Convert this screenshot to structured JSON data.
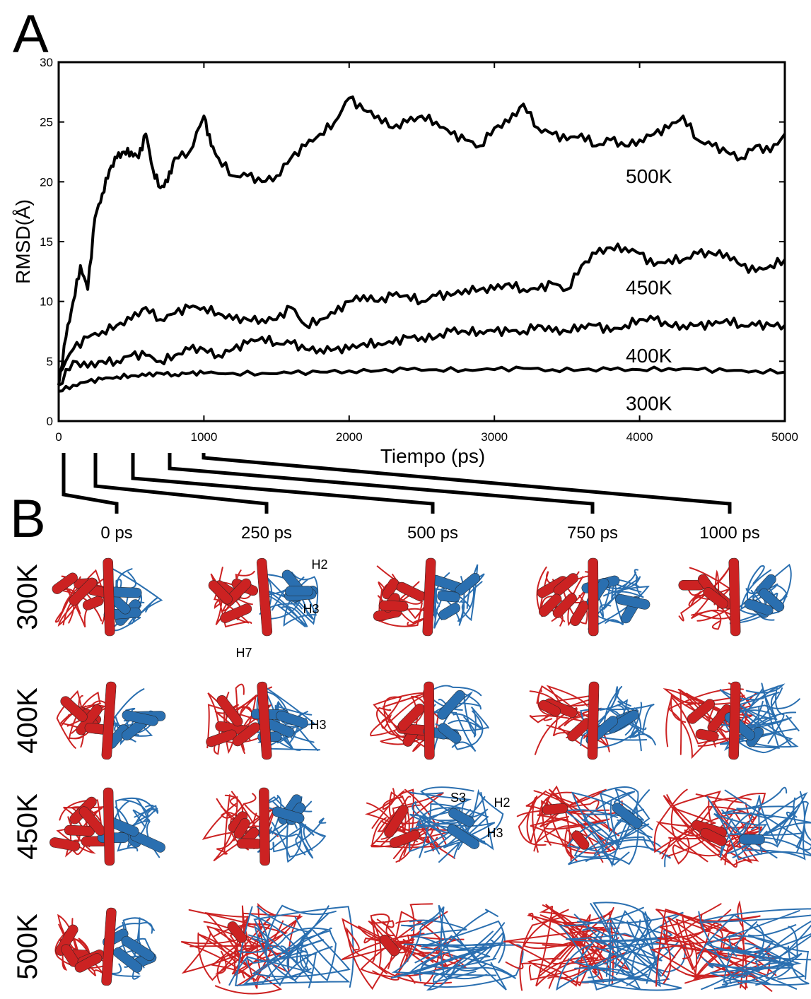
{
  "panel_a_letter": "A",
  "panel_b_letter": "B",
  "chart_data": {
    "type": "line",
    "xlabel": "Tiempo (ps)",
    "ylabel": "RMSD(Å)",
    "xlim": [
      0,
      5000
    ],
    "ylim": [
      0,
      30
    ],
    "xticks": [
      0,
      1000,
      2000,
      3000,
      4000,
      5000
    ],
    "yticks": [
      0,
      5,
      10,
      15,
      20,
      25,
      30
    ],
    "grid": false,
    "legend": "inline labels at right",
    "series": [
      {
        "name": "500K",
        "x": [
          0,
          50,
          100,
          150,
          200,
          250,
          300,
          350,
          400,
          450,
          500,
          550,
          600,
          650,
          700,
          750,
          800,
          900,
          1000,
          1050,
          1100,
          1200,
          1300,
          1400,
          1500,
          1600,
          1700,
          1800,
          1900,
          2000,
          2100,
          2200,
          2300,
          2400,
          2500,
          2600,
          2700,
          2800,
          2900,
          3000,
          3100,
          3200,
          3300,
          3400,
          3500,
          3600,
          3700,
          3800,
          3900,
          4000,
          4100,
          4200,
          4300,
          4400,
          4500,
          4600,
          4700,
          4800,
          4900,
          5000
        ],
        "y": [
          3,
          7,
          10,
          13,
          11,
          17,
          19,
          21,
          22,
          22.5,
          22.5,
          22,
          24,
          21,
          19.5,
          20,
          22,
          22.5,
          25.5,
          23,
          22,
          20.5,
          20.5,
          20,
          20.5,
          22,
          23,
          24,
          25,
          27,
          26,
          25.5,
          24.5,
          25,
          25.5,
          25,
          24,
          23.5,
          23,
          24.5,
          25,
          26.5,
          24.5,
          24,
          23.5,
          24,
          23,
          23.5,
          23,
          23.5,
          24,
          24.5,
          25.5,
          23.5,
          23,
          22.5,
          22,
          23,
          22.5,
          24
        ]
      },
      {
        "name": "450K",
        "x": [
          0,
          100,
          200,
          300,
          400,
          500,
          600,
          700,
          800,
          900,
          1000,
          1100,
          1200,
          1300,
          1400,
          1500,
          1600,
          1700,
          1800,
          1900,
          2000,
          2100,
          2200,
          2300,
          2400,
          2500,
          2600,
          2700,
          2800,
          2900,
          3000,
          3100,
          3200,
          3300,
          3400,
          3500,
          3600,
          3700,
          3800,
          3900,
          4000,
          4100,
          4200,
          4300,
          4400,
          4500,
          4600,
          4700,
          4800,
          4900,
          5000
        ],
        "y": [
          4,
          6,
          7,
          7.5,
          8,
          8.5,
          9.5,
          8.5,
          9,
          9.5,
          9.5,
          9,
          8.5,
          8.5,
          8.5,
          8.5,
          9.5,
          8,
          8.5,
          9,
          10,
          10.5,
          10,
          10.5,
          10.5,
          10,
          10.5,
          10.5,
          11,
          11,
          11,
          11.5,
          11,
          11,
          11.5,
          11,
          13,
          14,
          14.5,
          14.5,
          14,
          13,
          13.5,
          13.5,
          14,
          14,
          14,
          13,
          12.5,
          13,
          13.5
        ]
      },
      {
        "name": "400K",
        "x": [
          0,
          100,
          200,
          300,
          400,
          500,
          600,
          700,
          800,
          900,
          1000,
          1100,
          1200,
          1300,
          1400,
          1500,
          1600,
          1700,
          1800,
          1900,
          2000,
          2100,
          2200,
          2300,
          2400,
          2500,
          2600,
          2700,
          2800,
          2900,
          3000,
          3100,
          3200,
          3300,
          3400,
          3500,
          3600,
          3700,
          3800,
          3900,
          4000,
          4100,
          4200,
          4300,
          4400,
          4500,
          4600,
          4700,
          4800,
          4900,
          5000
        ],
        "y": [
          3,
          5,
          4.5,
          5,
          5,
          5.5,
          5.5,
          5,
          5.5,
          6,
          6,
          5.5,
          6,
          6.5,
          7,
          6.5,
          6.5,
          6,
          6,
          6,
          6,
          6.5,
          6.5,
          6.5,
          7,
          7,
          7,
          7.5,
          7.5,
          7.5,
          7.5,
          7.5,
          7.5,
          8,
          7.5,
          7.5,
          8,
          8,
          7.5,
          8,
          8.5,
          8.5,
          8,
          8,
          8,
          8,
          8.5,
          8,
          8,
          8,
          8
        ]
      },
      {
        "name": "300K",
        "x": [
          0,
          100,
          200,
          300,
          400,
          500,
          600,
          700,
          800,
          900,
          1000,
          1200,
          1400,
          1600,
          1800,
          2000,
          2200,
          2400,
          2600,
          2800,
          3000,
          3200,
          3400,
          3600,
          3800,
          4000,
          4200,
          4400,
          4600,
          4800,
          5000
        ],
        "y": [
          2.5,
          3,
          3.3,
          3.5,
          3.7,
          3.8,
          3.8,
          4,
          3.9,
          4,
          4,
          4,
          4,
          4,
          4.1,
          4.2,
          4.2,
          4.3,
          4.3,
          4.3,
          4.3,
          4.4,
          4.3,
          4.3,
          4.3,
          4.3,
          4.4,
          4.3,
          4.2,
          4.2,
          4.1
        ]
      }
    ]
  },
  "panel_b": {
    "timepoints": [
      "0 ps",
      "250 ps",
      "500 ps",
      "750 ps",
      "1000 ps"
    ],
    "timepoint_values_ps": [
      0,
      250,
      500,
      750,
      1000
    ],
    "rows": [
      "300K",
      "400K",
      "450K",
      "500K"
    ],
    "annotations": [
      {
        "row": 0,
        "col": 1,
        "text": "H2"
      },
      {
        "row": 0,
        "col": 1,
        "text": "H3"
      },
      {
        "row": 0,
        "col": 1,
        "text": "H7"
      },
      {
        "row": 1,
        "col": 1,
        "text": "H3"
      },
      {
        "row": 2,
        "col": 2,
        "text": "S3"
      },
      {
        "row": 2,
        "col": 2,
        "text": "H2"
      },
      {
        "row": 2,
        "col": 2,
        "text": "H3"
      }
    ],
    "colors": {
      "chain_a": "#cc2222",
      "chain_b": "#2a6fb0"
    }
  }
}
